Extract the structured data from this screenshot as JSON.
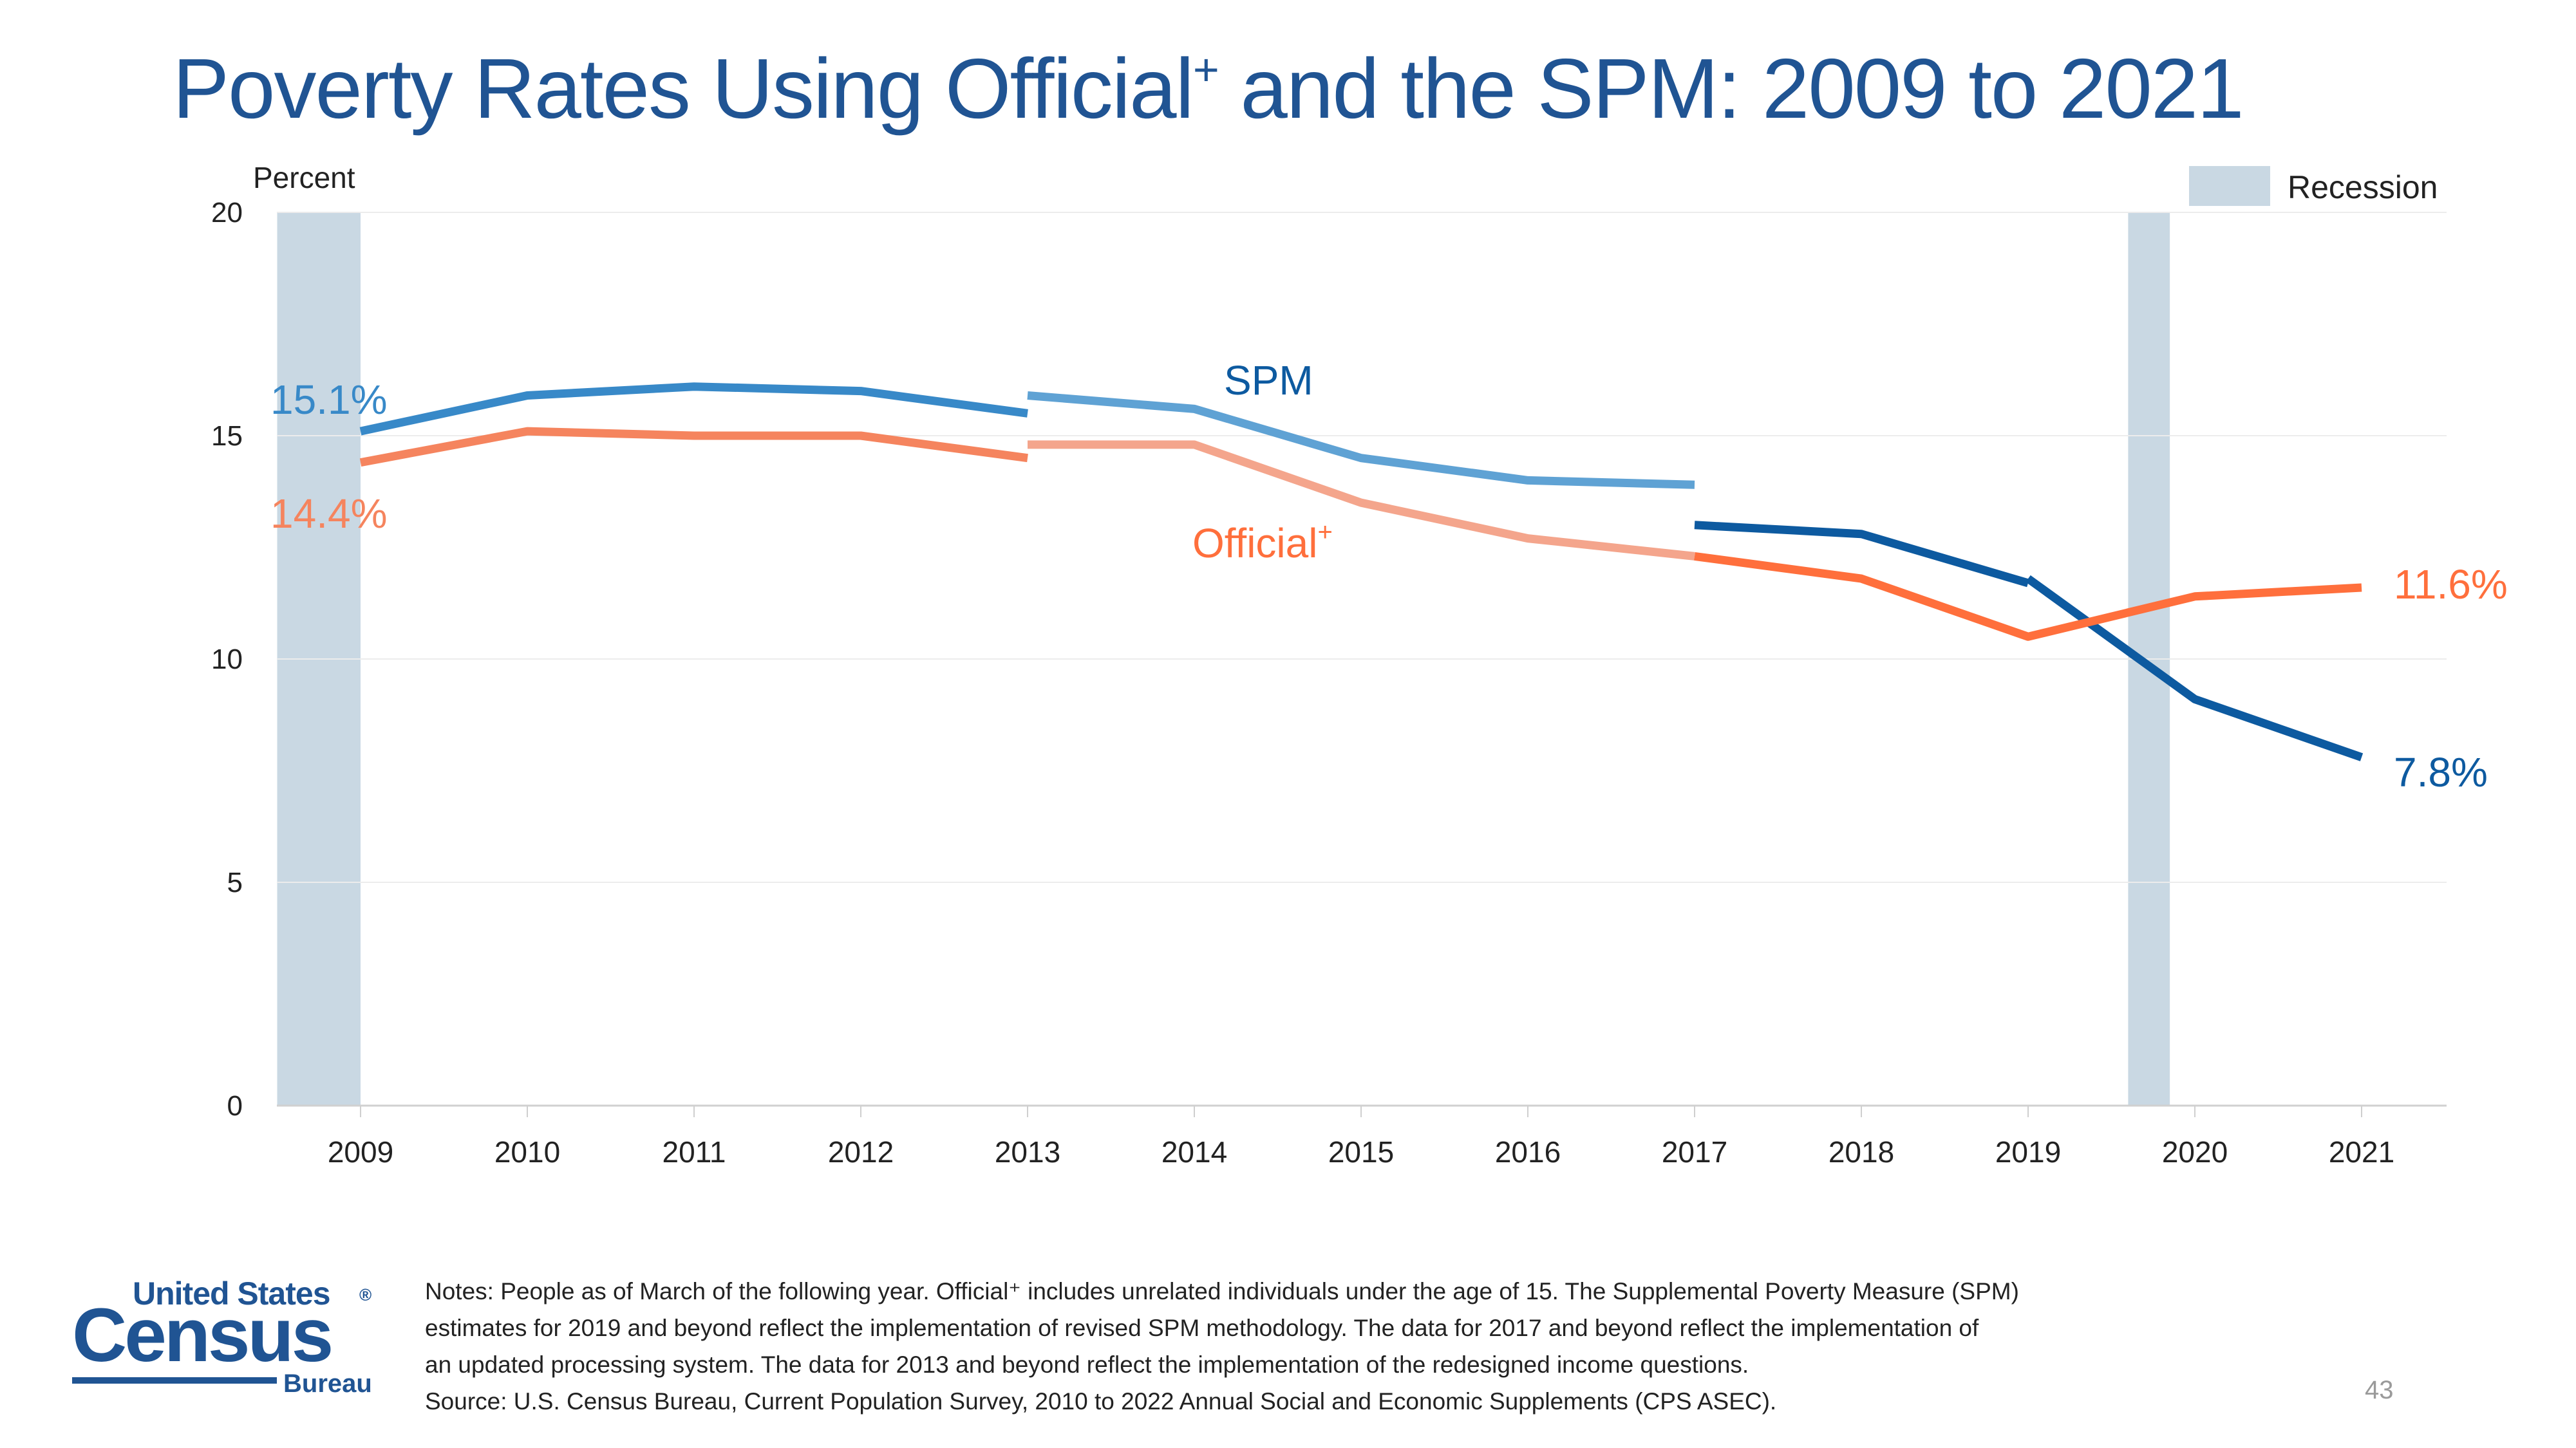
{
  "slide": {
    "title_main": "Poverty Rates Using Official",
    "title_sup": "+",
    "title_rest": " and the SPM: 2009 to 2021",
    "page_number": "43"
  },
  "logo": {
    "line1": "United States",
    "registered": "®",
    "line2": "Census",
    "line3": "Bureau"
  },
  "notes": {
    "line1": "Notes: People as of March of the following year. Official⁺ includes unrelated individuals under the age of 15. The Supplemental Poverty Measure (SPM)",
    "line2": "estimates for 2019 and beyond reflect the implementation of revised SPM methodology. The data for 2017 and beyond reflect the implementation of",
    "line3": "an updated processing system. The data for 2013 and beyond reflect the implementation of the redesigned income questions.",
    "line4": "Source: U.S. Census Bureau, Current Population Survey, 2010 to 2022 Annual Social and Economic Supplements (CPS ASEC)."
  },
  "colors": {
    "title": "#205493",
    "spm_dark": "#0d5aa0",
    "spm_mid": "#3889c8",
    "spm_light": "#5fa2d4",
    "official_dark": "#ff6f3c",
    "official_mid": "#f5845e",
    "official_light": "#f4a58c",
    "recession": "#c9d8e3",
    "grid": "#ececec",
    "axis_text": "#222222"
  },
  "chart_data": {
    "type": "line",
    "ylabel": "Percent",
    "ylim": [
      0,
      20
    ],
    "yticks": [
      0,
      5,
      10,
      15,
      20
    ],
    "xticks": [
      2009,
      2010,
      2011,
      2012,
      2013,
      2014,
      2015,
      2016,
      2017,
      2018,
      2019,
      2020,
      2021
    ],
    "grid": "horizontal",
    "legend": {
      "label": "Recession",
      "placement": "top-right"
    },
    "recession_bands": [
      [
        2008.5,
        2009.0
      ],
      [
        2019.6,
        2019.85
      ]
    ],
    "series": [
      {
        "name": "SPM",
        "segments": [
          {
            "x": [
              2009,
              2010,
              2011,
              2012,
              2013
            ],
            "y": [
              15.1,
              15.9,
              16.1,
              16.0,
              15.5
            ],
            "shade": "spm_mid"
          },
          {
            "x": [
              2013,
              2014,
              2015,
              2016,
              2017
            ],
            "y": [
              15.9,
              15.6,
              14.5,
              14.0,
              13.9
            ],
            "shade": "spm_light"
          },
          {
            "x": [
              2017,
              2018,
              2019
            ],
            "y": [
              13.0,
              12.8,
              11.7
            ],
            "shade": "spm_dark"
          },
          {
            "x": [
              2019,
              2020,
              2021
            ],
            "y": [
              11.8,
              9.1,
              7.8
            ],
            "shade": "spm_dark"
          }
        ]
      },
      {
        "name": "Official⁺",
        "segments": [
          {
            "x": [
              2009,
              2010,
              2011,
              2012,
              2013
            ],
            "y": [
              14.4,
              15.1,
              15.0,
              15.0,
              14.5
            ],
            "shade": "official_mid"
          },
          {
            "x": [
              2013,
              2014,
              2015,
              2016,
              2017
            ],
            "y": [
              14.8,
              14.8,
              13.5,
              12.7,
              12.3
            ],
            "shade": "official_light"
          },
          {
            "x": [
              2017,
              2018,
              2019,
              2020,
              2021
            ],
            "y": [
              12.3,
              11.8,
              10.5,
              11.4,
              11.6
            ],
            "shade": "official_dark"
          }
        ]
      }
    ],
    "annotations": {
      "spm_start": "15.1%",
      "official_start": "14.4%",
      "official_end": "11.6%",
      "spm_end": "7.8%",
      "spm_label": "SPM",
      "official_label": "Official",
      "official_label_sup": "+"
    }
  }
}
